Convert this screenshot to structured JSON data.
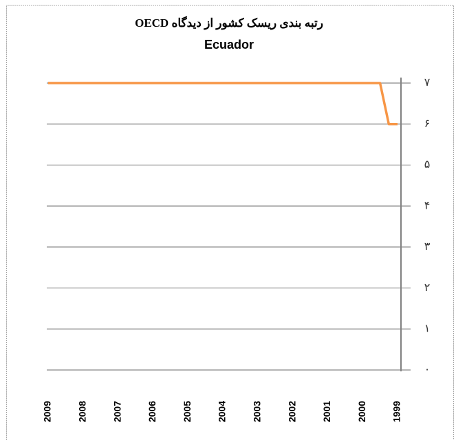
{
  "chart_data": {
    "type": "line",
    "title": "رتبه بندی ریسک کشور از دیدگاه OECD",
    "subtitle": "Ecuador",
    "x": [
      2009,
      1999.5,
      1999.25,
      1999
    ],
    "series": [
      {
        "name": "Ecuador",
        "color": "#f79646",
        "values": [
          7,
          7,
          6,
          6
        ]
      }
    ],
    "xlim": [
      2009,
      1999
    ],
    "xticks": [
      2009,
      2008,
      2007,
      2006,
      2005,
      2004,
      2003,
      2002,
      2001,
      2000,
      1999
    ],
    "ylim": [
      0,
      7
    ],
    "yticks": [
      {
        "value": 0,
        "label": "۰"
      },
      {
        "value": 1,
        "label": "۱"
      },
      {
        "value": 2,
        "label": "۲"
      },
      {
        "value": 3,
        "label": "۳"
      },
      {
        "value": 4,
        "label": "۴"
      },
      {
        "value": 5,
        "label": "۵"
      },
      {
        "value": 6,
        "label": "۶"
      },
      {
        "value": 7,
        "label": "۷"
      }
    ],
    "grid": true
  }
}
